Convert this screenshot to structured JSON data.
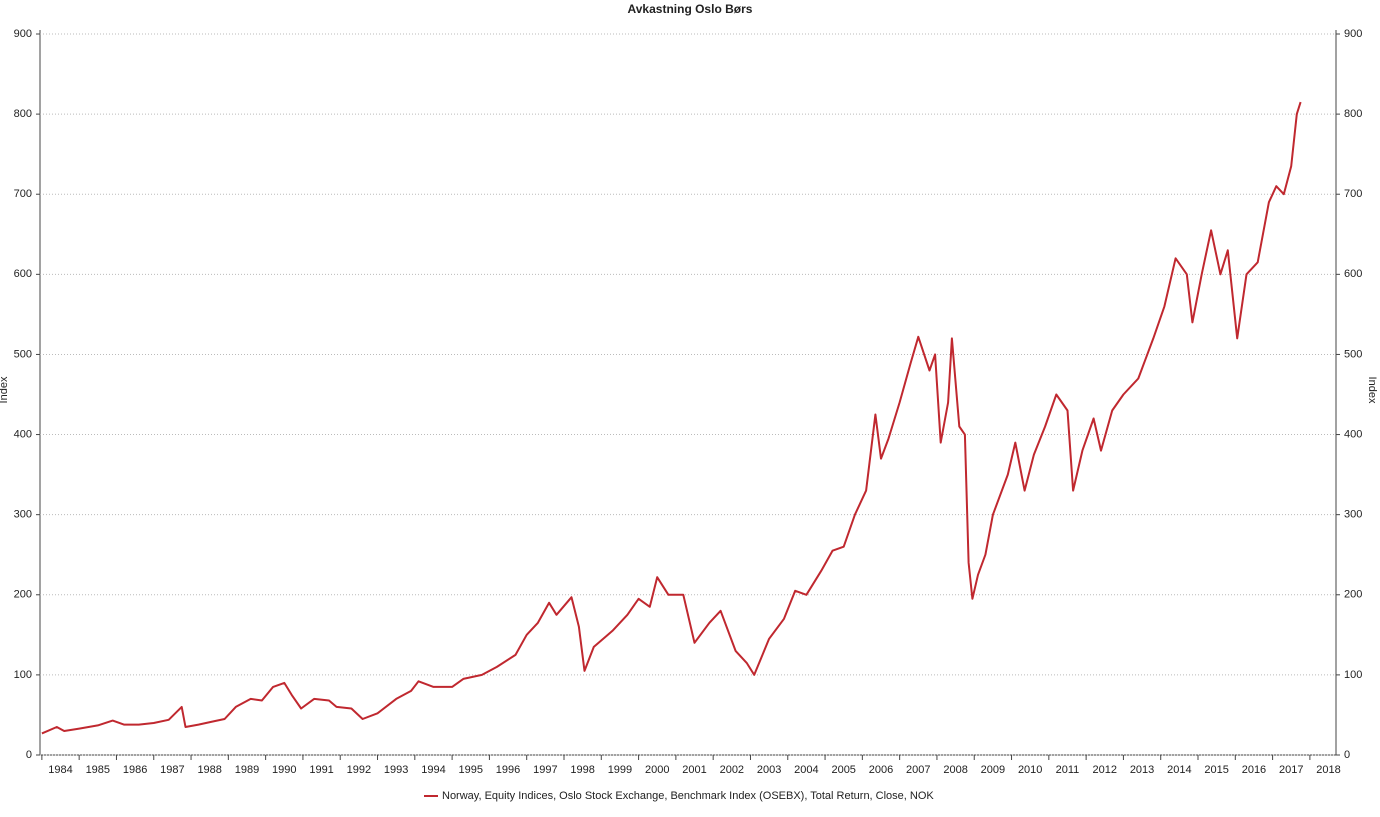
{
  "chart_data": {
    "type": "line",
    "title": "Avkastning Oslo Børs",
    "y_label": "Index",
    "x": [
      1984.0,
      1984.4,
      1984.6,
      1985.0,
      1985.5,
      1985.9,
      1986.2,
      1986.6,
      1987.0,
      1987.4,
      1987.75,
      1987.85,
      1988.2,
      1988.6,
      1988.9,
      1989.2,
      1989.6,
      1989.9,
      1990.2,
      1990.5,
      1990.7,
      1990.95,
      1991.3,
      1991.7,
      1991.9,
      1992.3,
      1992.6,
      1993.0,
      1993.5,
      1993.9,
      1994.1,
      1994.5,
      1995.0,
      1995.3,
      1995.8,
      1996.2,
      1996.7,
      1997.0,
      1997.3,
      1997.6,
      1997.8,
      1998.2,
      1998.4,
      1998.55,
      1998.8,
      1999.3,
      1999.7,
      2000.0,
      2000.3,
      2000.5,
      2000.8,
      2001.2,
      2001.5,
      2001.9,
      2002.2,
      2002.6,
      2002.9,
      2003.1,
      2003.5,
      2003.9,
      2004.2,
      2004.5,
      2004.9,
      2005.2,
      2005.5,
      2005.8,
      2006.1,
      2006.35,
      2006.5,
      2006.7,
      2007.0,
      2007.3,
      2007.5,
      2007.8,
      2007.95,
      2008.1,
      2008.3,
      2008.4,
      2008.6,
      2008.75,
      2008.85,
      2008.95,
      2009.1,
      2009.3,
      2009.5,
      2009.9,
      2010.1,
      2010.35,
      2010.6,
      2010.9,
      2011.2,
      2011.5,
      2011.65,
      2011.9,
      2012.2,
      2012.4,
      2012.7,
      2013.0,
      2013.4,
      2013.8,
      2014.1,
      2014.4,
      2014.7,
      2014.85,
      2015.1,
      2015.35,
      2015.6,
      2015.8,
      2016.05,
      2016.3,
      2016.6,
      2016.9,
      2017.1,
      2017.3,
      2017.5,
      2017.65,
      2017.75
    ],
    "series": [
      {
        "name": "Norway, Equity Indices, Oslo Stock Exchange, Benchmark Index (OSEBX), Total Return, Close, NOK",
        "color": "#c0282f",
        "values": [
          27,
          35,
          30,
          33,
          37,
          43,
          38,
          38,
          40,
          44,
          60,
          35,
          38,
          42,
          45,
          60,
          70,
          68,
          85,
          90,
          75,
          58,
          70,
          68,
          60,
          58,
          45,
          52,
          70,
          80,
          92,
          85,
          85,
          95,
          100,
          110,
          125,
          150,
          165,
          190,
          175,
          197,
          160,
          105,
          135,
          155,
          175,
          195,
          185,
          222,
          200,
          200,
          140,
          165,
          180,
          130,
          115,
          100,
          145,
          170,
          205,
          200,
          230,
          255,
          260,
          300,
          330,
          425,
          370,
          395,
          440,
          490,
          522,
          480,
          500,
          390,
          440,
          520,
          410,
          400,
          240,
          195,
          225,
          250,
          300,
          350,
          390,
          330,
          375,
          410,
          450,
          430,
          330,
          380,
          420,
          380,
          430,
          450,
          470,
          520,
          560,
          620,
          600,
          540,
          600,
          655,
          600,
          630,
          520,
          600,
          615,
          690,
          710,
          700,
          735,
          800,
          815
        ]
      }
    ],
    "xlim": [
      1983.95,
      2018.7
    ],
    "xticks": [
      1984,
      1985,
      1986,
      1987,
      1988,
      1989,
      1990,
      1991,
      1992,
      1993,
      1994,
      1995,
      1996,
      1997,
      1998,
      1999,
      2000,
      2001,
      2002,
      2003,
      2004,
      2005,
      2006,
      2007,
      2008,
      2009,
      2010,
      2011,
      2012,
      2013,
      2014,
      2015,
      2016,
      2017,
      2018
    ],
    "ylim": [
      0,
      900
    ],
    "yticks": [
      0,
      100,
      200,
      300,
      400,
      500,
      600,
      700,
      800,
      900
    ],
    "grid": true
  }
}
